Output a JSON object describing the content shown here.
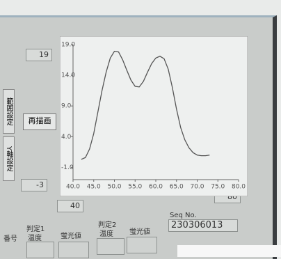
{
  "panel": {
    "y_max": "19",
    "y_min": "-3",
    "x_min": "40",
    "x_max": "80",
    "redraw_button": "再描画",
    "tabs": [
      "範囲設定",
      "Y軸設定"
    ],
    "judge1": {
      "title": "判定1",
      "temp": "温度",
      "fluor": "蛍光値"
    },
    "judge2": {
      "title": "判定2",
      "temp": "温度",
      "fluor": "蛍光値"
    },
    "seq_label": "Seq No.",
    "seq_value": "230306013",
    "number_label": "番号"
  },
  "chart_data": {
    "type": "line",
    "x": [
      42,
      43,
      44,
      45,
      46,
      47,
      48,
      49,
      50,
      51,
      52,
      53,
      54,
      55,
      56,
      57,
      58,
      59,
      60,
      61,
      62,
      63,
      64,
      65,
      66,
      67,
      68,
      69,
      70,
      71,
      72,
      73
    ],
    "series": [
      {
        "color": "#555555",
        "values": [
          0.3,
          0.6,
          2.0,
          4.5,
          8.0,
          11.5,
          14.5,
          16.8,
          17.9,
          17.8,
          16.5,
          14.8,
          13.2,
          12.2,
          12.1,
          13.0,
          14.5,
          15.9,
          16.8,
          17.1,
          16.7,
          15.0,
          12.0,
          8.5,
          5.5,
          3.5,
          2.2,
          1.4,
          1.0,
          0.9,
          0.9,
          1.0
        ]
      }
    ],
    "xlim": [
      40,
      80
    ],
    "xticks": [
      {
        "value": 40,
        "label": "40.0"
      },
      {
        "value": 45,
        "label": "45.0"
      },
      {
        "value": 50,
        "label": "50.0"
      },
      {
        "value": 55,
        "label": "55.0"
      },
      {
        "value": 60,
        "label": "60.0"
      },
      {
        "value": 65,
        "label": "65.0"
      },
      {
        "value": 70,
        "label": "70.0"
      },
      {
        "value": 75,
        "label": "75.0"
      },
      {
        "value": 80,
        "label": "80.0"
      }
    ],
    "ylim": [
      -3,
      19
    ],
    "yticks": [
      {
        "value": -1,
        "label": "-1.0"
      },
      {
        "value": 4,
        "label": "4.0"
      },
      {
        "value": 9,
        "label": "9.0"
      },
      {
        "value": 14,
        "label": "14.0"
      },
      {
        "value": 19,
        "label": "19.0"
      }
    ]
  }
}
